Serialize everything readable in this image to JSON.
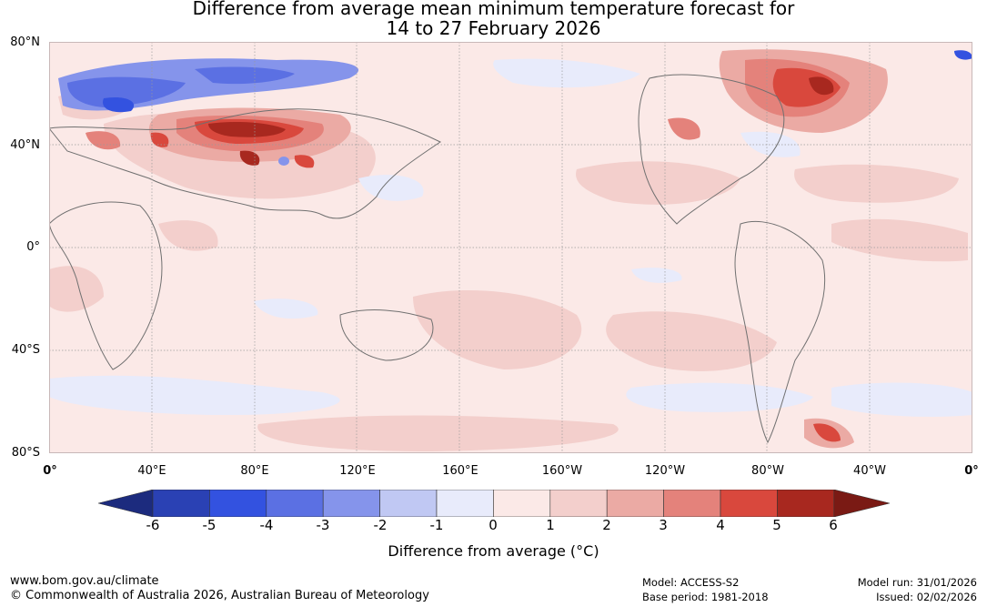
{
  "title": {
    "line1": "Difference from average mean minimum temperature forecast for",
    "line2": "14 to 27 February 2026"
  },
  "map": {
    "latitude_labels": [
      "80°N",
      "40°N",
      "0°",
      "40°S",
      "80°S"
    ],
    "longitude_labels": [
      "0°",
      "40°E",
      "80°E",
      "120°E",
      "160°E",
      "160°W",
      "120°W",
      "80°W",
      "40°W",
      "0°"
    ],
    "anomaly_regions": [
      {
        "region": "Central Asia / Mongolia",
        "value": "6"
      },
      {
        "region": "Northeast Canada / Hudson Bay",
        "value": "5"
      },
      {
        "region": "Scandinavia / Northwest Russia",
        "value": "-4"
      },
      {
        "region": "Southern Patagonia",
        "value": "5"
      }
    ]
  },
  "colorbar": {
    "ticks": [
      "-6",
      "-5",
      "-4",
      "-3",
      "-2",
      "-1",
      "0",
      "1",
      "2",
      "3",
      "4",
      "5",
      "6"
    ],
    "colors": [
      "#1c2b7e",
      "#2a41b4",
      "#3352e0",
      "#5b70e3",
      "#8594eb",
      "#c0c8f3",
      "#e8ebfb",
      "#fbe9e7",
      "#f3cfcc",
      "#ebaaa4",
      "#e4827b",
      "#d9483d",
      "#a8281f",
      "#7a1a14"
    ],
    "label": "Difference from average (°C)"
  },
  "footer": {
    "website": "www.bom.gov.au/climate",
    "copyright": "© Commonwealth of Australia 2026, Australian Bureau of Meteorology",
    "model": "Model: ACCESS-S2",
    "base_period": "Base period: 1981-2018",
    "model_run": "Model run: 31/01/2026",
    "issued": "Issued: 02/02/2026"
  }
}
